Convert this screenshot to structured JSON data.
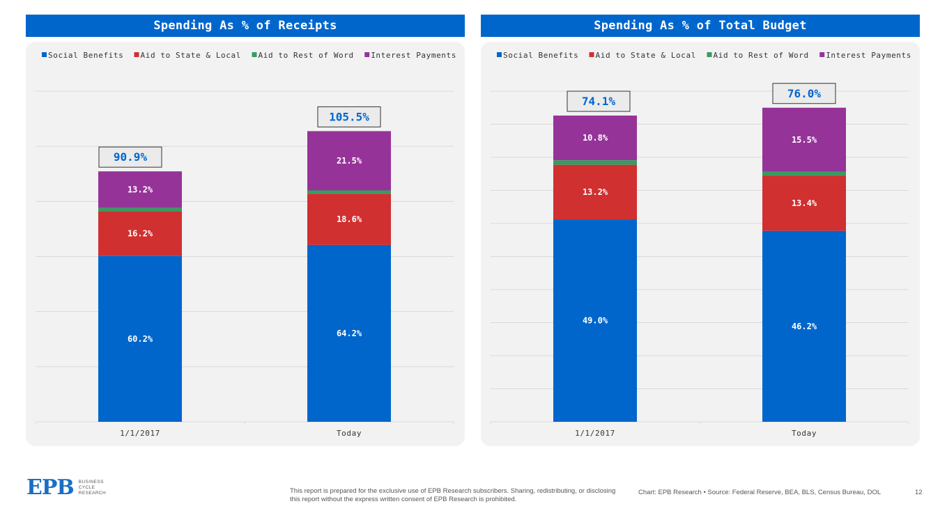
{
  "colors": {
    "social": "#0066cc",
    "aid_state": "#d03030",
    "aid_world": "#3a9a5f",
    "interest": "#963399",
    "title_bg": "#0066cc",
    "total_label": "#0066cc"
  },
  "chart_data": [
    {
      "type": "bar",
      "stacked": true,
      "title": "Spending As % of Receipts",
      "categories": [
        "1/1/2017",
        "Today"
      ],
      "legend": [
        "Social Benefits",
        "Aid to State & Local",
        "Aid to Rest of Word",
        "Interest Payments"
      ],
      "series": [
        {
          "name": "Social Benefits",
          "values": [
            60.2,
            64.2
          ],
          "labels": [
            "60.2%",
            "64.2%"
          ]
        },
        {
          "name": "Aid to State & Local",
          "values": [
            16.2,
            18.6
          ],
          "labels": [
            "16.2%",
            "18.6%"
          ]
        },
        {
          "name": "Aid to Rest of Word",
          "values": [
            1.3,
            1.2
          ],
          "labels": [
            "",
            ""
          ]
        },
        {
          "name": "Interest Payments",
          "values": [
            13.2,
            21.5
          ],
          "labels": [
            "13.2%",
            "21.5%"
          ]
        }
      ],
      "totals": [
        "90.9%",
        "105.5%"
      ],
      "ylim": [
        0,
        120
      ],
      "grid": true
    },
    {
      "type": "bar",
      "stacked": true,
      "title": "Spending As % of Total Budget",
      "categories": [
        "1/1/2017",
        "Today"
      ],
      "legend": [
        "Social Benefits",
        "Aid to State & Local",
        "Aid to Rest of Word",
        "Interest Payments"
      ],
      "series": [
        {
          "name": "Social Benefits",
          "values": [
            49.0,
            46.2
          ],
          "labels": [
            "49.0%",
            "46.2%"
          ]
        },
        {
          "name": "Aid to State & Local",
          "values": [
            13.2,
            13.4
          ],
          "labels": [
            "13.2%",
            "13.4%"
          ]
        },
        {
          "name": "Aid to Rest of Word",
          "values": [
            1.1,
            0.9
          ],
          "labels": [
            "",
            ""
          ]
        },
        {
          "name": "Interest Payments",
          "values": [
            10.8,
            15.5
          ],
          "labels": [
            "10.8%",
            "15.5%"
          ]
        }
      ],
      "totals": [
        "74.1%",
        "76.0%"
      ],
      "ylim": [
        0,
        80
      ],
      "grid": true
    }
  ],
  "footer": {
    "logo_text": "EPB",
    "logo_sub": [
      "BUSINESS",
      "CYCLE",
      "RESEARCH"
    ],
    "disclaimer": "This report is prepared for the exclusive use of EPB Research subscribers. Sharing, redistributing, or disclosing this report without the express written consent of EPB Research is prohibited.",
    "source": "Chart: EPB Research • Source: Federal Reserve, BEA, BLS, Census Bureau, DOL",
    "page": "12"
  }
}
